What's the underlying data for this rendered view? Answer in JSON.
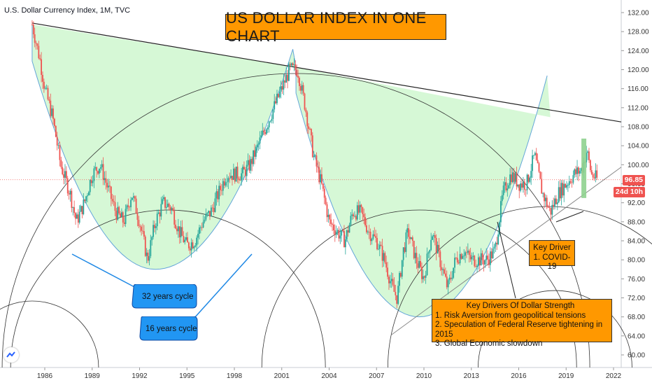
{
  "chart_data": {
    "type": "line",
    "subtype": "candlestick",
    "title": "US DOLLAR INDEX IN ONE CHART",
    "symbol": "U.S. Dollar Currency Index, 1M, TVC",
    "y_ticks": [
      60,
      64,
      68,
      72,
      76,
      80,
      84,
      88,
      92,
      96,
      100,
      104,
      108,
      112,
      116,
      120,
      124,
      128,
      132
    ],
    "y_tick_labels": [
      "60.00",
      "64.00",
      "68.00",
      "72.00",
      "76.00",
      "80.00",
      "84.00",
      "88.00",
      "92.00",
      "96.00",
      "100.00",
      "104.00",
      "108.00",
      "112.00",
      "116.00",
      "120.00",
      "124.00",
      "128.00",
      "132.00"
    ],
    "x_ticks": [
      "1986",
      "1989",
      "1992",
      "1995",
      "1998",
      "2001",
      "2004",
      "2007",
      "2010",
      "2013",
      "2016",
      "2019",
      "2022"
    ],
    "ylim": [
      58,
      134
    ],
    "xlim": [
      1984.6,
      2024.0
    ],
    "grid": false,
    "series": [
      {
        "x": [
          1985.2,
          1985.7,
          1986.0,
          1986.5,
          1987.0,
          1987.6,
          1988.0,
          1988.5,
          1989.0,
          1989.5,
          1990.0,
          1990.5,
          1991.0,
          1991.5,
          1992.0,
          1992.5,
          1993.0,
          1993.5,
          1994.0,
          1994.5,
          1995.0,
          1995.5,
          1996.0,
          1996.5,
          1997.0,
          1997.5,
          1998.0,
          1998.5,
          1999.0,
          1999.5,
          2000.0,
          2000.5,
          2001.0,
          2001.5,
          2002.0,
          2002.5,
          2003.0,
          2003.5,
          2004.0,
          2004.5,
          2005.0,
          2005.5,
          2006.0,
          2006.5,
          2007.0,
          2007.5,
          2008.0,
          2008.3,
          2008.7,
          2009.0,
          2009.5,
          2010.0,
          2010.5,
          2011.0,
          2011.5,
          2012.0,
          2012.5,
          2013.0,
          2013.5,
          2014.0,
          2014.5,
          2015.0,
          2015.5,
          2016.0,
          2016.5,
          2017.0,
          2017.5,
          2018.0,
          2018.5,
          2019.0,
          2019.5,
          2020.0,
          2020.3,
          2020.6,
          2021.0
        ],
        "values": [
          129.5,
          122.0,
          116.0,
          110.0,
          100.0,
          94.0,
          88.0,
          92.0,
          98.0,
          100.0,
          95.0,
          90.0,
          88.0,
          94.0,
          88.0,
          80.0,
          88.0,
          92.0,
          91.0,
          86.0,
          83.0,
          84.0,
          88.0,
          90.0,
          94.0,
          98.0,
          98.0,
          98.0,
          100.0,
          104.0,
          108.0,
          112.0,
          116.0,
          120.0,
          120.0,
          112.0,
          102.0,
          96.0,
          88.0,
          86.0,
          84.0,
          90.0,
          90.0,
          86.0,
          84.0,
          80.0,
          74.0,
          72.0,
          82.0,
          86.0,
          80.0,
          76.0,
          86.0,
          80.0,
          74.0,
          80.0,
          82.0,
          80.0,
          80.0,
          80.0,
          82.0,
          94.0,
          98.0,
          96.0,
          96.0,
          102.0,
          94.0,
          90.0,
          94.0,
          96.0,
          98.0,
          99.0,
          103.0,
          98.0,
          96.85
        ]
      }
    ],
    "last_price": "96.85",
    "countdown": "24d 10h",
    "annotations": [
      "32 years cycle",
      "16 years cycle",
      "Key Driver",
      "1. COVID-19",
      "Key Drivers Of Dollar Strength",
      "1. Risk Aversion from geopolitical tensions",
      "2. Speculation of Federal Reserve tightening in 2015",
      "3. Global Economic slowdown"
    ],
    "colors": {
      "up": "#26a69a",
      "down": "#ef5350",
      "fill": "#c8f5c8",
      "callout_orange": "#ff9800",
      "callout_blue": "#2196f3"
    }
  },
  "labels": {
    "symbol": "U.S. Dollar Currency Index, 1M, TVC",
    "banner": "US DOLLAR INDEX IN ONE CHART",
    "cycle32": "32 years cycle",
    "cycle16": "16 years cycle",
    "covid_title": "Key Driver",
    "covid_item": "1. COVID-19",
    "drivers_title": "Key Drivers Of Dollar Strength",
    "driver1": "1. Risk Aversion from geopolitical tensions",
    "driver2": "2. Speculation of Federal Reserve tightening in 2015",
    "driver3": "3. Global Economic slowdown",
    "price_badge": "96.85",
    "time_badge": "24d 10h"
  }
}
